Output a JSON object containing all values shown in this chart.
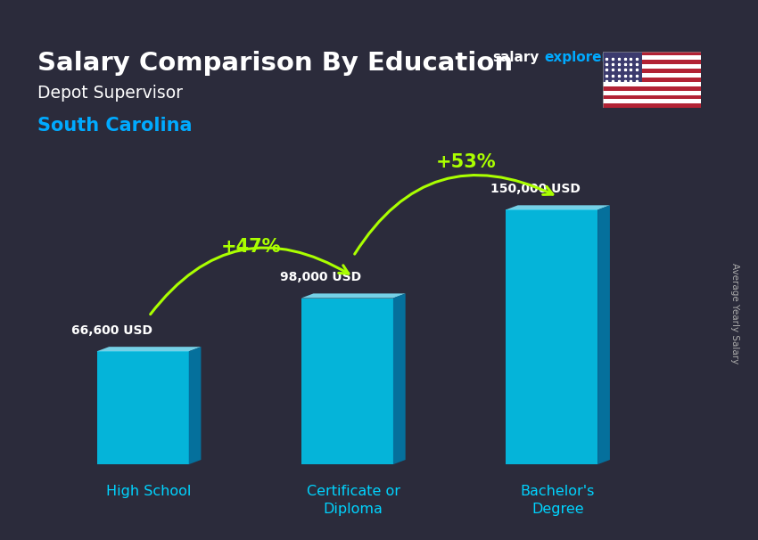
{
  "title_main": "Salary Comparison By Education",
  "title_sub1": "Depot Supervisor",
  "title_sub2": "South Carolina",
  "ylabel": "Average Yearly Salary",
  "categories": [
    "High School",
    "Certificate or\nDiploma",
    "Bachelor's\nDegree"
  ],
  "values": [
    66600,
    98000,
    150000
  ],
  "value_labels": [
    "66,600 USD",
    "98,000 USD",
    "150,000 USD"
  ],
  "pct_labels": [
    "+47%",
    "+53%"
  ],
  "pct_color": "#aaff00",
  "background_color": "#2b2b3b",
  "title_color": "#ffffff",
  "sub1_color": "#ffffff",
  "sub2_color": "#00aaff",
  "value_label_color": "#ffffff",
  "xtick_color": "#00d4ff",
  "front_color": "#00c8f0",
  "top_color": "#80e8ff",
  "side_color": "#007aaa"
}
